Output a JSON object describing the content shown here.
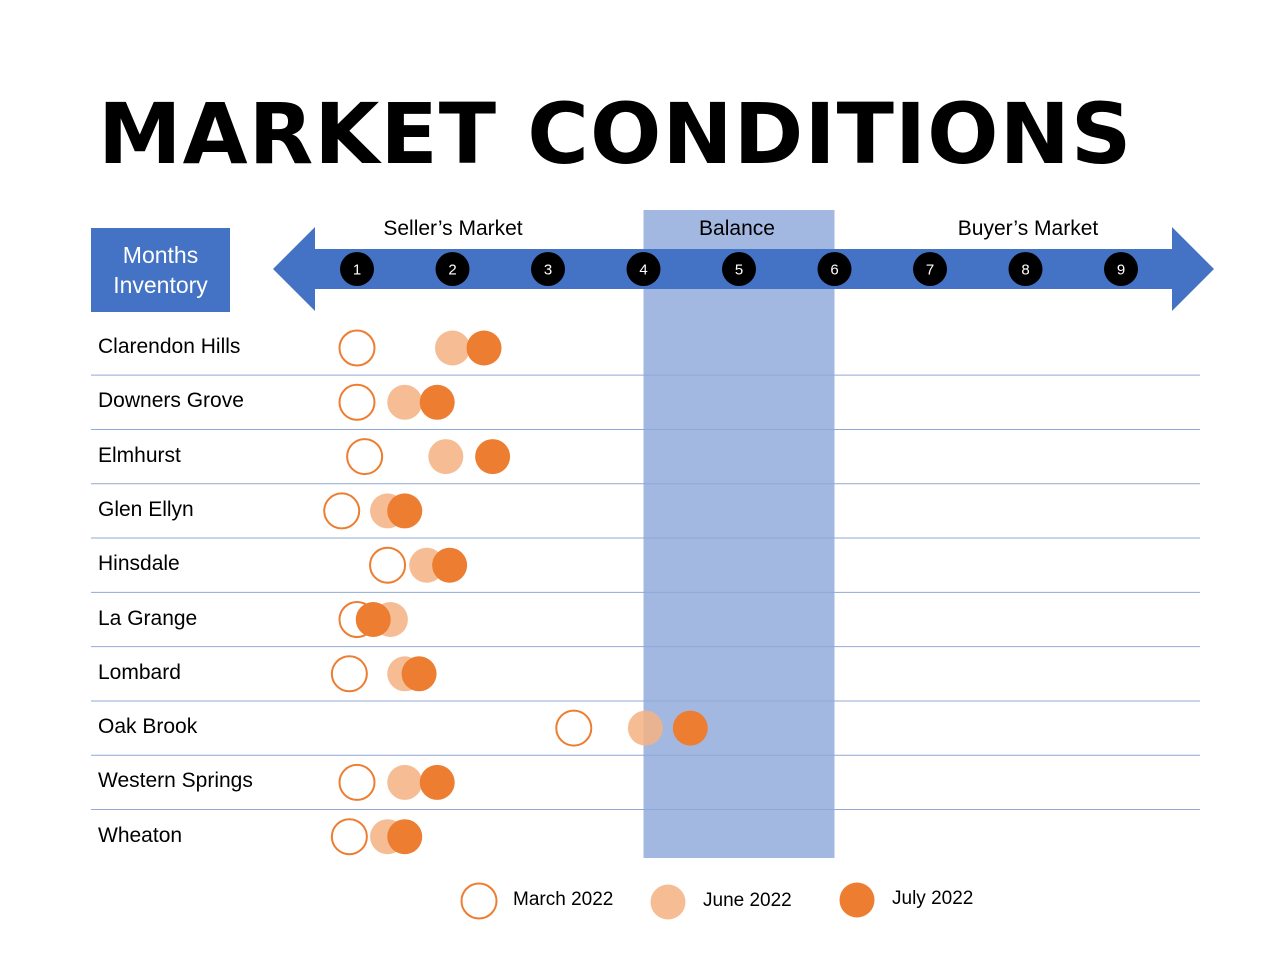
{
  "title": "MARKET CONDITIONS",
  "box_label_line1": "Months",
  "box_label_line2": "Inventory",
  "colors": {
    "arrow": "#4472c4",
    "balance_band": "#a3b8e0",
    "tick_circle": "#000000",
    "march": "#ed7d31",
    "june": "#f4b183",
    "july": "#ed7d31",
    "row_line": "#8fa9d6"
  },
  "chart_data": {
    "type": "scatter",
    "x_scale": [
      1,
      9
    ],
    "x_ticks": [
      1,
      2,
      3,
      4,
      5,
      6,
      7,
      8,
      9
    ],
    "zones": [
      {
        "label": "Seller’s Market",
        "from": 0,
        "to": 4
      },
      {
        "label": "Balance",
        "from": 4,
        "to": 6
      },
      {
        "label": "Buyer’s Market",
        "from": 6,
        "to": 10
      }
    ],
    "categories": [
      "Clarendon Hills",
      "Downers Grove",
      "Elmhurst",
      "Glen Ellyn",
      "Hinsdale",
      "La Grange",
      "Lombard",
      "Oak Brook",
      "Western Springs",
      "Wheaton"
    ],
    "series": [
      {
        "name": "March 2022",
        "style": "hollow",
        "values": [
          1.0,
          1.0,
          1.08,
          0.84,
          1.32,
          1.0,
          0.92,
          3.27,
          1.0,
          0.92
        ]
      },
      {
        "name": "June 2022",
        "style": "light",
        "values": [
          2.0,
          1.5,
          1.93,
          1.32,
          1.73,
          1.35,
          1.5,
          4.02,
          1.5,
          1.32
        ]
      },
      {
        "name": "July 2022",
        "style": "solid",
        "values": [
          2.33,
          1.84,
          2.42,
          1.5,
          1.97,
          1.17,
          1.65,
          4.49,
          1.84,
          1.5
        ]
      }
    ]
  }
}
